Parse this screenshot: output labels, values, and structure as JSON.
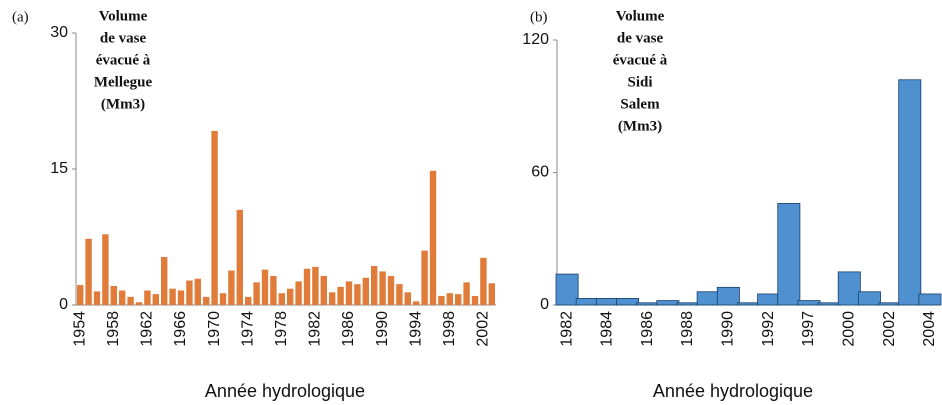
{
  "chart_data": [
    {
      "type": "bar",
      "panel": "(a)",
      "title_lines": [
        "Volume",
        "de vase",
        "évacué à",
        "Mellegue",
        "(Mm3)"
      ],
      "x_label": "Année hydrologique",
      "categories": [
        "1954",
        null,
        null,
        null,
        "1958",
        null,
        null,
        null,
        "1962",
        null,
        null,
        null,
        "1966",
        null,
        null,
        null,
        "1970",
        null,
        null,
        null,
        "1974",
        null,
        null,
        null,
        "1978",
        null,
        null,
        null,
        "1982",
        null,
        null,
        null,
        "1986",
        null,
        null,
        null,
        "1990",
        null,
        null,
        null,
        "1994",
        null,
        null,
        null,
        "1998",
        null,
        null,
        null,
        "2002",
        null
      ],
      "values": [
        2.2,
        7.3,
        1.5,
        7.8,
        2.1,
        1.6,
        0.9,
        0.3,
        1.6,
        1.2,
        5.3,
        1.8,
        1.6,
        2.7,
        2.9,
        0.9,
        19.2,
        1.3,
        3.8,
        10.5,
        0.9,
        2.5,
        3.9,
        3.2,
        1.3,
        1.8,
        2.6,
        4.0,
        4.2,
        3.2,
        1.4,
        2.0,
        2.6,
        2.3,
        3.0,
        4.3,
        3.7,
        3.2,
        2.3,
        1.4,
        0.4,
        6.0,
        14.8,
        1.0,
        1.3,
        1.2,
        2.5,
        1.0,
        5.2,
        2.4
      ],
      "color": "#e07b39",
      "ylim": [
        0,
        30
      ],
      "yticks": [
        0,
        15,
        30
      ]
    },
    {
      "type": "bar",
      "panel": "(b)",
      "title_lines": [
        "Volume",
        "de vase",
        "évacué à",
        "Sidi",
        "Salem",
        "(Mm3)"
      ],
      "x_label": "Année hydrologique",
      "categories": [
        "1982",
        null,
        "1984",
        null,
        "1986",
        null,
        "1988",
        null,
        "1990",
        null,
        "1992",
        null,
        "1997",
        null,
        "2000",
        null,
        "2002",
        null,
        "2004"
      ],
      "values": [
        14,
        3,
        3,
        3,
        1,
        2,
        1,
        6,
        8,
        1,
        5,
        46,
        2,
        1,
        15,
        6,
        1,
        102,
        5
      ],
      "color": "#4f90d0",
      "ylim": [
        0,
        120
      ],
      "yticks": [
        0,
        60,
        120
      ]
    }
  ]
}
